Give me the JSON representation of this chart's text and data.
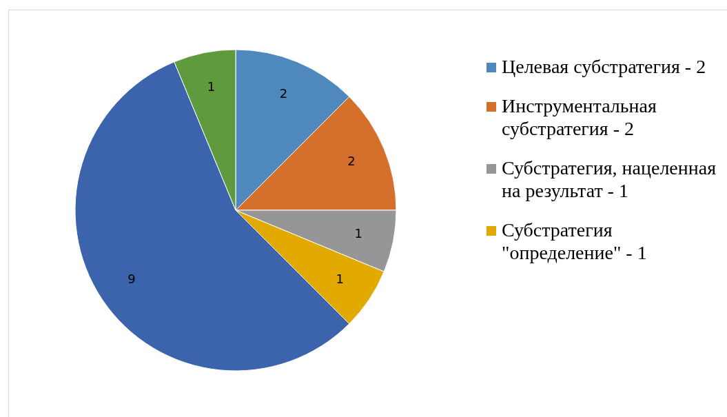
{
  "chart_data": {
    "type": "pie",
    "categories": [
      "Целевая субстратегия - 2",
      "Инструментальная субстратегия - 2",
      "Субстратегия, нацеленная на результат - 1",
      "Субстратегия \"определение\" - 1",
      null,
      null
    ],
    "values": [
      2,
      2,
      1,
      1,
      9,
      1
    ],
    "colors": [
      "#4f88bd",
      "#d46f2c",
      "#969696",
      "#e2aa00",
      "#3c64ac",
      "#5f9b3e"
    ],
    "data_labels": true,
    "legend": "right"
  }
}
